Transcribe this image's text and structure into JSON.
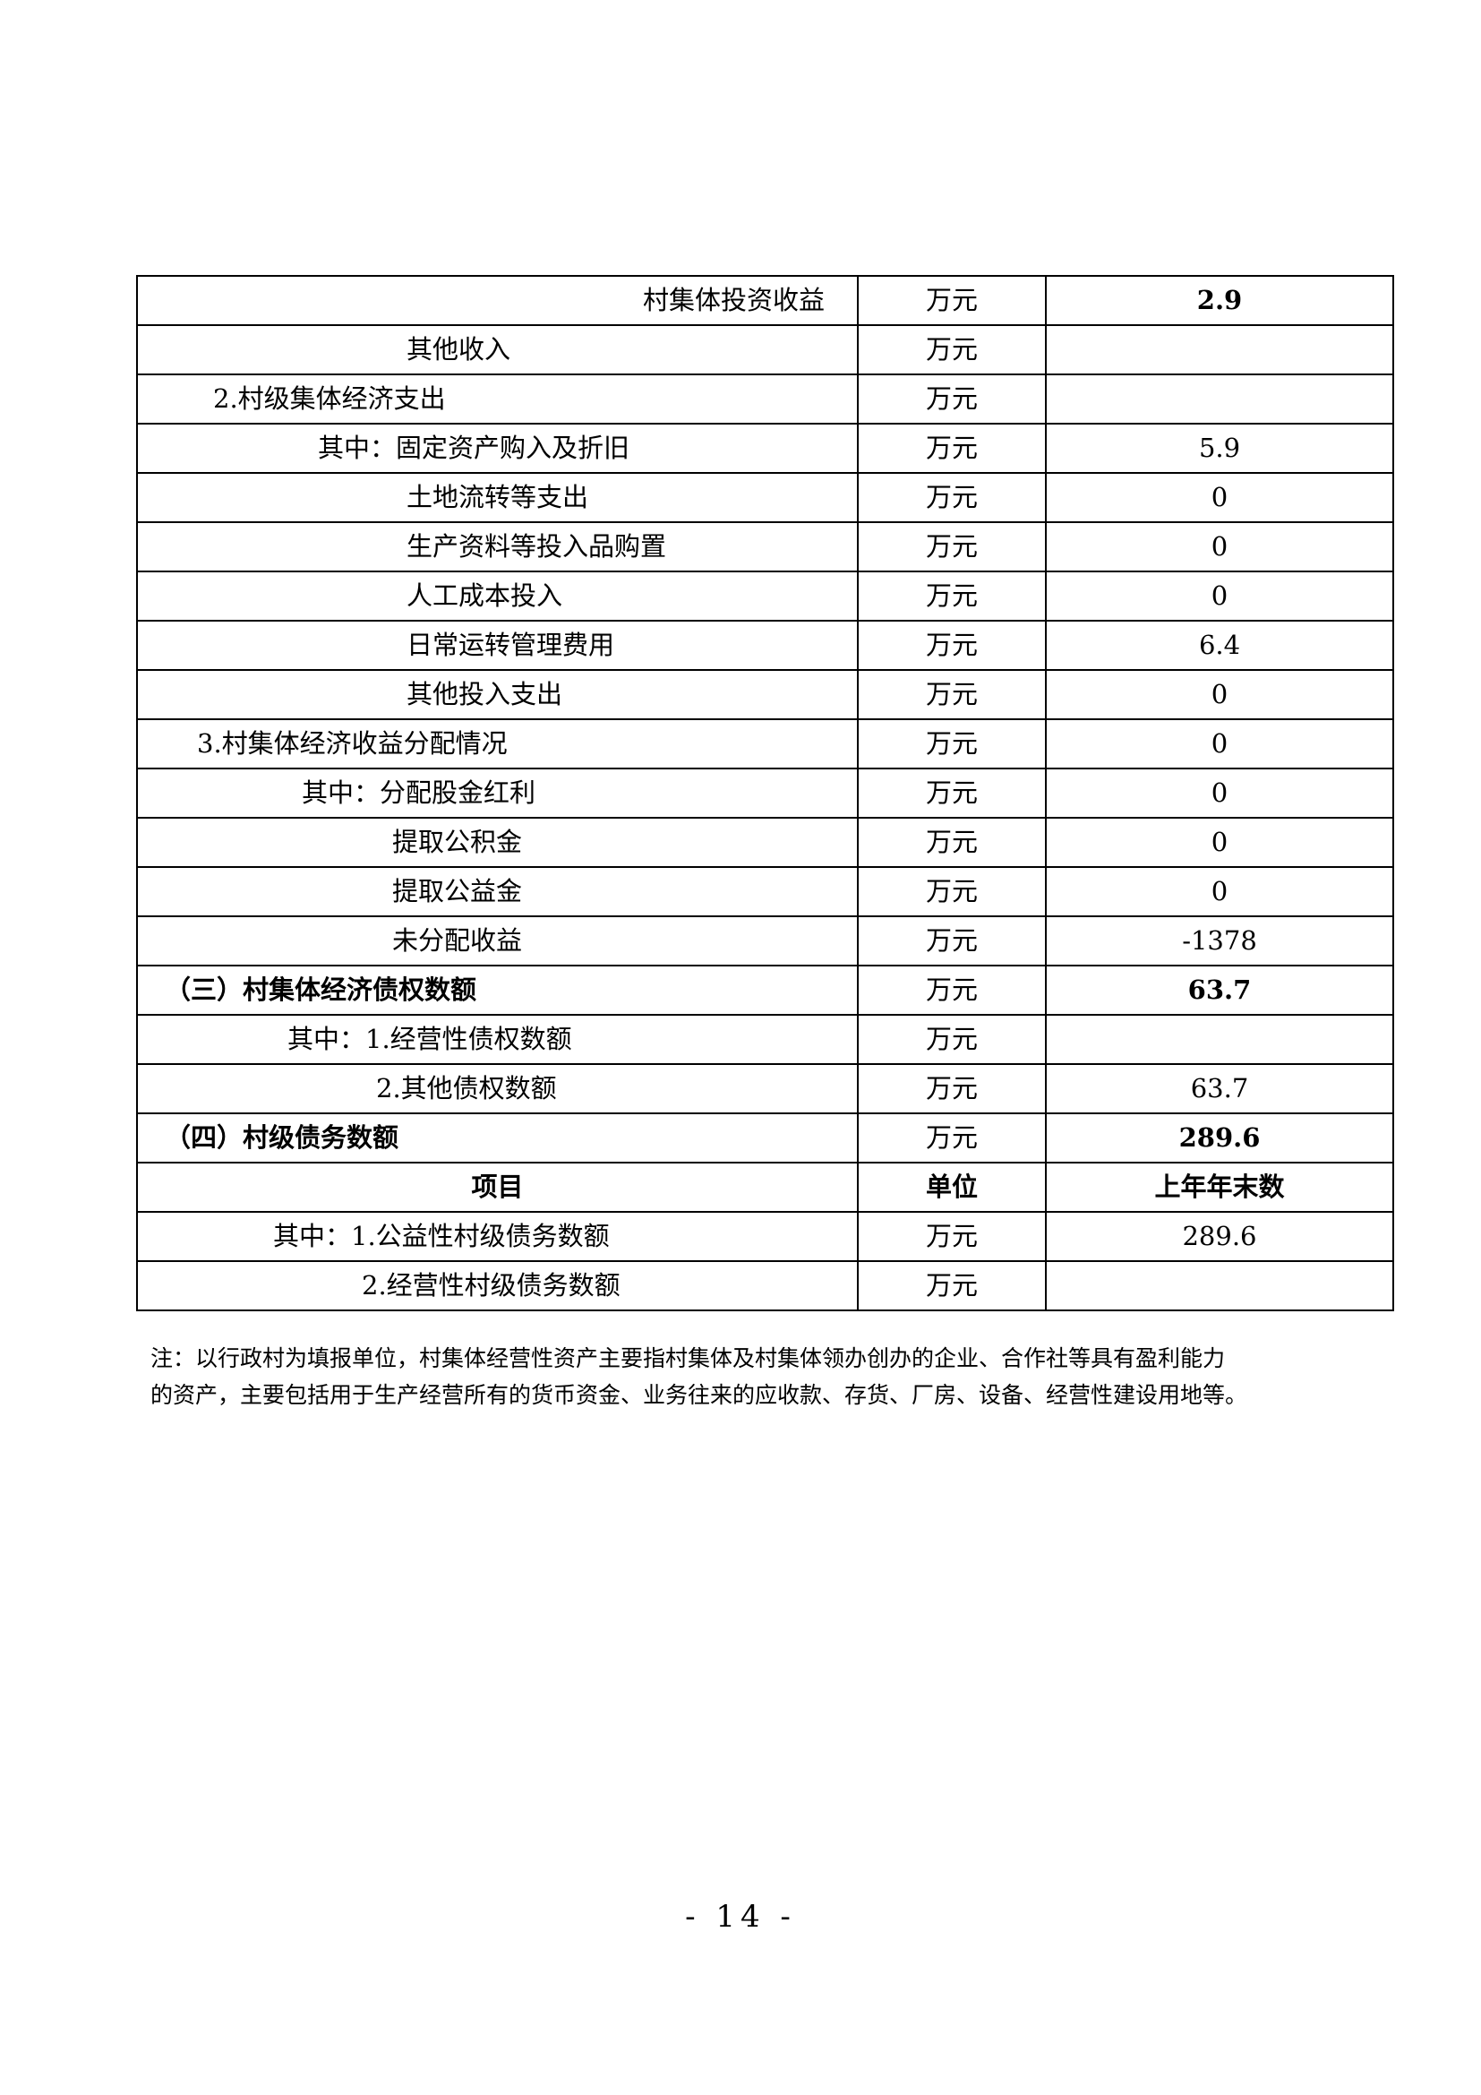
{
  "table": {
    "rows": [
      {
        "item": "村集体投资收益",
        "unit": "万元",
        "value": "2.9"
      },
      {
        "item": "其他收入",
        "unit": "万元",
        "value": ""
      },
      {
        "item": "2.村级集体经济支出",
        "unit": "万元",
        "value": ""
      },
      {
        "item": "其中：固定资产购入及折旧",
        "unit": "万元",
        "value": "5.9"
      },
      {
        "item": "土地流转等支出",
        "unit": "万元",
        "value": "0"
      },
      {
        "item": "生产资料等投入品购置",
        "unit": "万元",
        "value": "0"
      },
      {
        "item": "人工成本投入",
        "unit": "万元",
        "value": "0"
      },
      {
        "item": "日常运转管理费用",
        "unit": "万元",
        "value": "6.4"
      },
      {
        "item": "其他投入支出",
        "unit": "万元",
        "value": "0"
      },
      {
        "item": "3.村集体经济收益分配情况",
        "unit": "万元",
        "value": "0"
      },
      {
        "item": "其中：分配股金红利",
        "unit": "万元",
        "value": "0"
      },
      {
        "item": "提取公积金",
        "unit": "万元",
        "value": "0"
      },
      {
        "item": "提取公益金",
        "unit": "万元",
        "value": "0"
      },
      {
        "item": "未分配收益",
        "unit": "万元",
        "value": "-1378"
      },
      {
        "item": "（三）村集体经济债权数额",
        "unit": "万元",
        "value": "63.7"
      },
      {
        "item": "其中：1.经营性债权数额",
        "unit": "万元",
        "value": ""
      },
      {
        "item": "2.其他债权数额",
        "unit": "万元",
        "value": "63.7"
      },
      {
        "item": "（四）村级债务数额",
        "unit": "万元",
        "value": "289.6"
      },
      {
        "item": "项目",
        "unit": "单位",
        "value": "上年年末数"
      },
      {
        "item": "其中：1.公益性村级债务数额",
        "unit": "万元",
        "value": "289.6"
      },
      {
        "item": "2.经营性村级债务数额",
        "unit": "万元",
        "value": ""
      }
    ]
  },
  "note": {
    "line1": "注：以行政村为填报单位，村集体经营性资产主要指村集体及村集体领办创办的企业、合作社等具有盈利能力",
    "line2": "的资产，主要包括用于生产经营所有的货币资金、业务往来的应收款、存货、厂房、设备、经营性建设用地等。"
  },
  "page_number": "- 14 -"
}
